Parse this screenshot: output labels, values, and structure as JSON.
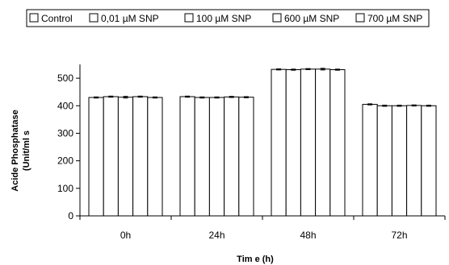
{
  "chart_data": {
    "type": "bar",
    "categories": [
      "0h",
      "24h",
      "48h",
      "72h"
    ],
    "series": [
      {
        "name": "Control",
        "values": [
          430,
          433,
          532,
          405
        ]
      },
      {
        "name": "0,01 µM SNP",
        "values": [
          433,
          430,
          531,
          400
        ]
      },
      {
        "name": "100 µM SNP",
        "values": [
          431,
          430,
          533,
          400
        ]
      },
      {
        "name": "600 µM SNP",
        "values": [
          433,
          432,
          533,
          401
        ]
      },
      {
        "name": "700 µM SNP",
        "values": [
          430,
          431,
          531,
          400
        ]
      }
    ],
    "errors": [
      [
        2,
        2,
        2,
        2
      ],
      [
        2,
        2,
        2,
        2
      ],
      [
        3,
        2,
        2,
        2
      ],
      [
        2,
        2,
        3,
        2
      ],
      [
        2,
        2,
        2,
        2
      ]
    ],
    "xlabel": "Tim e  (h)",
    "ylabel_line1": "Acide Phosphatase",
    "ylabel_line2": "(Unit/ml s",
    "ylim": [
      0,
      550
    ],
    "yticks": [
      0,
      100,
      200,
      300,
      400,
      500
    ],
    "bar_fill": "#ffffff",
    "bar_stroke": "#000000",
    "legend_position": "top",
    "grid": false
  }
}
